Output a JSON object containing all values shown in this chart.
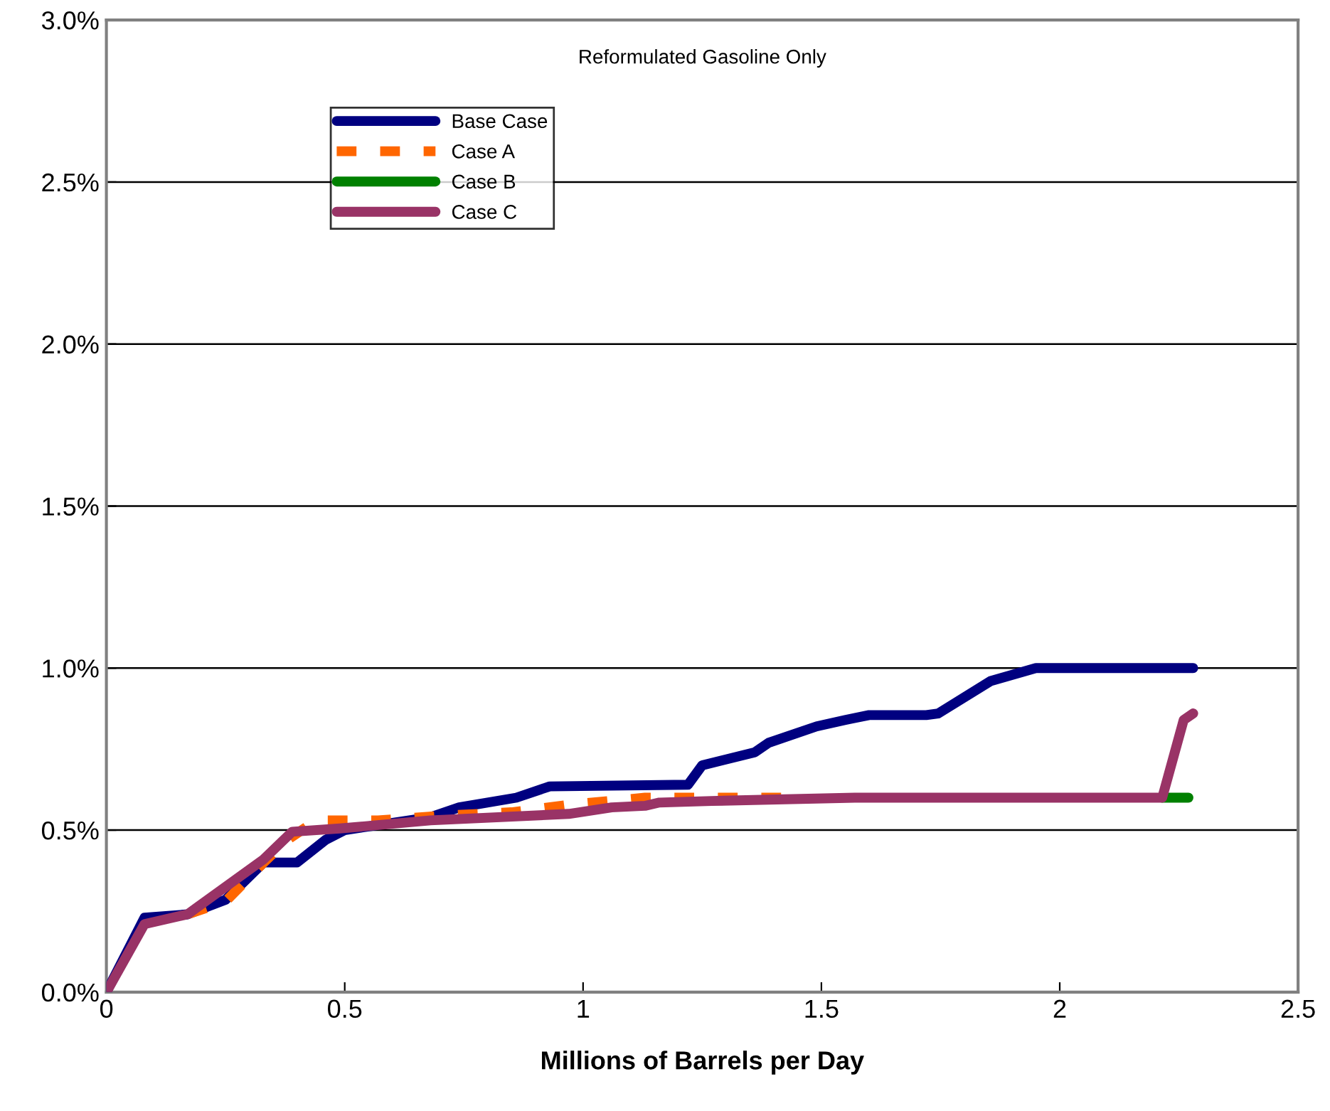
{
  "chart_data": {
    "type": "line",
    "title": "Reformulated Gasoline Only",
    "xlabel": "Millions of Barrels per Day",
    "xlim": [
      0,
      2.5
    ],
    "xticks": [
      0,
      0.5,
      1,
      1.5,
      2,
      2.5
    ],
    "ylim": [
      0,
      3.0
    ],
    "yticks": [
      {
        "value": 0,
        "label": "0.0%"
      },
      {
        "value": 0.5,
        "label": "0.5%"
      },
      {
        "value": 1.0,
        "label": "1.0%"
      },
      {
        "value": 1.5,
        "label": "1.5%"
      },
      {
        "value": 2.0,
        "label": "2.0%"
      },
      {
        "value": 2.5,
        "label": "2.5%"
      },
      {
        "value": 3.0,
        "label": "3.0%"
      }
    ],
    "grid": "y",
    "legend": "top left",
    "marker": "none",
    "series": [
      {
        "name": "Base Case",
        "color": "#000080",
        "line_style": "solid",
        "x": [
          0,
          0.08,
          0.17,
          0.25,
          0.33,
          0.4,
          0.46,
          0.5,
          0.68,
          0.74,
          0.86,
          0.93,
          1.22,
          1.25,
          1.36,
          1.39,
          1.49,
          1.55,
          1.6,
          1.72,
          1.745,
          1.855,
          1.95,
          2.28
        ],
        "values": [
          0,
          0.23,
          0.24,
          0.285,
          0.4,
          0.4,
          0.47,
          0.5,
          0.54,
          0.57,
          0.6,
          0.635,
          0.64,
          0.7,
          0.74,
          0.77,
          0.82,
          0.84,
          0.855,
          0.855,
          0.86,
          0.96,
          1.0,
          1.0
        ]
      },
      {
        "name": "Case A",
        "color": "#ff6600",
        "line_style": "dashed",
        "x": [
          0.17,
          0.25,
          0.33,
          0.38,
          0.44,
          0.57,
          0.71,
          0.85,
          0.98,
          1.13,
          1.42
        ],
        "values": [
          0.24,
          0.28,
          0.4,
          0.47,
          0.53,
          0.53,
          0.545,
          0.555,
          0.58,
          0.6,
          0.6
        ]
      },
      {
        "name": "Case B",
        "color": "#008000",
        "line_style": "solid",
        "x": [
          2.215,
          2.27
        ],
        "values": [
          0.6,
          0.6
        ]
      },
      {
        "name": "Case C",
        "color": "#993366",
        "line_style": "solid",
        "x": [
          0,
          0.08,
          0.17,
          0.33,
          0.39,
          0.49,
          0.68,
          0.97,
          1.06,
          1.13,
          1.16,
          1.27,
          1.57,
          2.215,
          2.26,
          2.28
        ],
        "values": [
          0,
          0.21,
          0.24,
          0.41,
          0.495,
          0.505,
          0.53,
          0.55,
          0.57,
          0.575,
          0.585,
          0.59,
          0.6,
          0.6,
          0.84,
          0.86
        ]
      }
    ]
  }
}
